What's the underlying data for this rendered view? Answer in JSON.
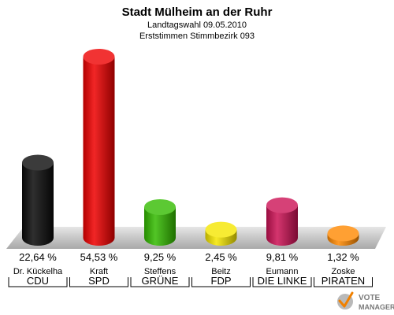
{
  "chart_data": {
    "type": "bar",
    "title": "Stadt Mülheim an der Ruhr",
    "subtitle_1": "Landtagswahl 09.05.2010",
    "subtitle_2": "Erststimmen Stimmbezirk 093",
    "categories": [
      "CDU",
      "SPD",
      "GRÜNE",
      "FDP",
      "DIE LINKE",
      "PIRATEN"
    ],
    "candidates": [
      "Dr. Kückelha",
      "Kraft",
      "Steffens",
      "Beitz",
      "Eumann",
      "Zoske"
    ],
    "values": [
      22.64,
      54.53,
      9.25,
      2.45,
      9.81,
      1.32
    ],
    "value_labels": [
      "22,64 %",
      "54,53 %",
      "9,25 %",
      "2,45 %",
      "9,81 %",
      "1,32 %"
    ],
    "colors": [
      "#0a0a0a",
      "#ee0000",
      "#33bb00",
      "#f5e600",
      "#cc1155",
      "#ff8800"
    ],
    "ylim": [
      0,
      55
    ]
  },
  "logo": {
    "line1": "VOTE",
    "line2": "MANAGER"
  }
}
